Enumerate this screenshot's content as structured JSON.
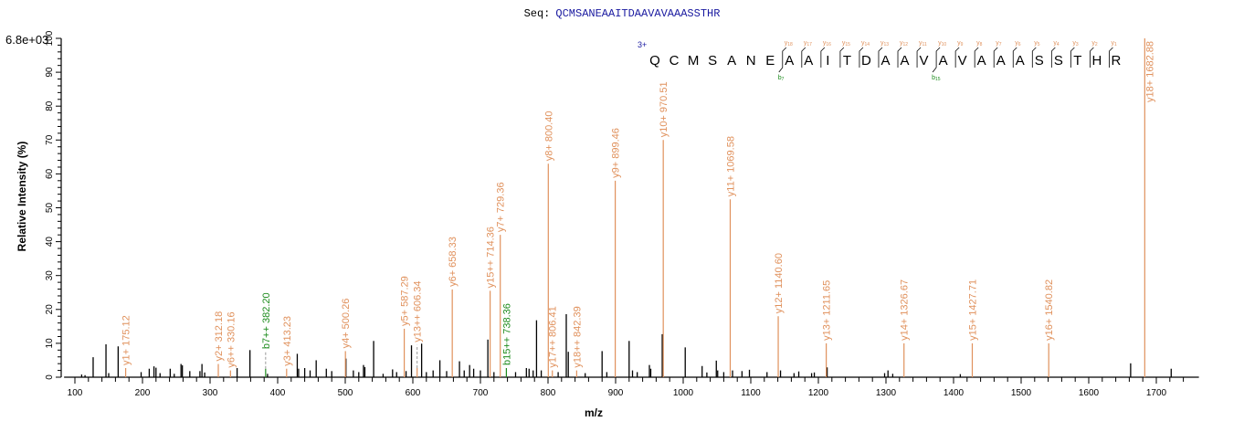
{
  "chart_data": {
    "type": "bar",
    "subtype": "mass-spectrum-sticks",
    "title_prefix": "Seq:",
    "title_sequence": "QCMSANEAAITDAAVAVAAASSTHR",
    "intensity_max_label": "6.8e+03",
    "xlabel": "m/z",
    "ylabel": "Relative Intensity (%)",
    "xlim": [
      84,
      1763
    ],
    "ylim": [
      0,
      100
    ],
    "x_ticks": [
      100,
      200,
      300,
      400,
      500,
      600,
      700,
      800,
      900,
      1000,
      1100,
      1200,
      1300,
      1400,
      1500,
      1600,
      1700
    ],
    "y_ticks": [
      0,
      10,
      20,
      30,
      40,
      50,
      60,
      70,
      80,
      90,
      100
    ],
    "grid": false,
    "colors": {
      "y_ion": "#e0915c",
      "b_ion": "#1e8c1e",
      "unassigned": "#000000",
      "sequence": "#1a1aa0",
      "charge": "#1a1aa0"
    },
    "annotated_peaks": [
      {
        "label": "y1+ 175.12",
        "mz": 175.12,
        "intensity": 2.7,
        "ion": "y"
      },
      {
        "label": "y2+ 312.18",
        "mz": 312.18,
        "intensity": 3.9,
        "ion": "y"
      },
      {
        "label": "y6++ 330.16",
        "mz": 330.16,
        "intensity": 2.0,
        "ion": "y"
      },
      {
        "label": "b7++ 382.20",
        "mz": 382.2,
        "intensity": 2.5,
        "ion": "b",
        "dashed": true,
        "label_at": 7.5
      },
      {
        "label": "y3+ 413.23",
        "mz": 413.23,
        "intensity": 2.5,
        "ion": "y"
      },
      {
        "label": "y4+ 500.26",
        "mz": 500.26,
        "intensity": 7.7,
        "ion": "y"
      },
      {
        "label": "y5+ 587.29",
        "mz": 587.29,
        "intensity": 14.3,
        "ion": "y"
      },
      {
        "label": "y13++ 606.34",
        "mz": 606.34,
        "intensity": 2.7,
        "ion": "y",
        "dashed": true,
        "label_at": 9.5
      },
      {
        "label": "y6+ 658.33",
        "mz": 658.33,
        "intensity": 25.9,
        "ion": "y"
      },
      {
        "label": "y15++ 714.36",
        "mz": 714.36,
        "intensity": 25.5,
        "ion": "y"
      },
      {
        "label": "y7+ 729.36",
        "mz": 729.36,
        "intensity": 42.0,
        "ion": "y"
      },
      {
        "label": "b15++ 738.36",
        "mz": 738.36,
        "intensity": 2.7,
        "ion": "b"
      },
      {
        "label": "y8+ 800.40",
        "mz": 800.4,
        "intensity": 63.0,
        "ion": "y"
      },
      {
        "label": "y17++ 806.41",
        "mz": 806.41,
        "intensity": 2.0,
        "ion": "y"
      },
      {
        "label": "y18++ 842.39",
        "mz": 842.39,
        "intensity": 2.0,
        "ion": "y"
      },
      {
        "label": "y9+ 899.46",
        "mz": 899.46,
        "intensity": 58.0,
        "ion": "y"
      },
      {
        "label": "y10+ 970.51",
        "mz": 970.51,
        "intensity": 70.0,
        "ion": "y"
      },
      {
        "label": "y11+ 1069.58",
        "mz": 1069.58,
        "intensity": 52.5,
        "ion": "y"
      },
      {
        "label": "y12+ 1140.60",
        "mz": 1140.6,
        "intensity": 18.0,
        "ion": "y"
      },
      {
        "label": "y13+ 1211.65",
        "mz": 1211.65,
        "intensity": 10.0,
        "ion": "y"
      },
      {
        "label": "y14+ 1326.67",
        "mz": 1326.67,
        "intensity": 10.0,
        "ion": "y"
      },
      {
        "label": "y15+ 1427.71",
        "mz": 1427.71,
        "intensity": 10.0,
        "ion": "y"
      },
      {
        "label": "y16+ 1540.82",
        "mz": 1540.82,
        "intensity": 10.0,
        "ion": "y"
      },
      {
        "label": "y18+ 1682.88",
        "mz": 1682.88,
        "intensity": 100.0,
        "ion": "y"
      }
    ],
    "unassigned_peaks": [
      [
        110,
        0.8
      ],
      [
        115,
        0.6
      ],
      [
        127,
        5.9
      ],
      [
        146,
        9.7
      ],
      [
        150,
        1.2
      ],
      [
        164,
        9.1
      ],
      [
        198,
        1.5
      ],
      [
        210,
        2.5
      ],
      [
        217,
        3.2
      ],
      [
        220,
        2.8
      ],
      [
        226,
        1.2
      ],
      [
        241,
        2.5
      ],
      [
        247,
        1.0
      ],
      [
        257,
        3.9
      ],
      [
        259,
        3.5
      ],
      [
        270,
        1.8
      ],
      [
        285,
        1.8
      ],
      [
        288,
        3.9
      ],
      [
        292,
        1.4
      ],
      [
        340,
        2.7
      ],
      [
        359,
        8.0
      ],
      [
        385,
        1.0
      ],
      [
        429,
        6.9
      ],
      [
        431,
        2.5
      ],
      [
        440,
        2.7
      ],
      [
        448,
        2.0
      ],
      [
        457,
        5.0
      ],
      [
        472,
        2.5
      ],
      [
        480,
        1.8
      ],
      [
        501,
        5.5
      ],
      [
        512,
        2.0
      ],
      [
        520,
        1.5
      ],
      [
        527,
        3.6
      ],
      [
        529,
        3.0
      ],
      [
        542,
        10.7
      ],
      [
        556,
        1.0
      ],
      [
        570,
        2.3
      ],
      [
        576,
        1.5
      ],
      [
        590,
        1.8
      ],
      [
        598,
        9.4
      ],
      [
        613,
        9.9
      ],
      [
        620,
        1.5
      ],
      [
        630,
        2.0
      ],
      [
        640,
        5.0
      ],
      [
        650,
        1.8
      ],
      [
        669,
        4.7
      ],
      [
        676,
        2.0
      ],
      [
        684,
        3.6
      ],
      [
        690,
        2.5
      ],
      [
        700,
        2.0
      ],
      [
        711,
        11.1
      ],
      [
        720,
        1.5
      ],
      [
        752,
        1.5
      ],
      [
        768,
        2.7
      ],
      [
        772,
        2.5
      ],
      [
        778,
        2.0
      ],
      [
        783,
        16.8
      ],
      [
        790,
        2.0
      ],
      [
        815,
        1.5
      ],
      [
        827,
        18.6
      ],
      [
        830,
        7.5
      ],
      [
        855,
        1.2
      ],
      [
        880,
        7.7
      ],
      [
        887,
        1.5
      ],
      [
        920,
        10.7
      ],
      [
        925,
        2.0
      ],
      [
        932,
        1.5
      ],
      [
        950,
        3.6
      ],
      [
        952,
        2.5
      ],
      [
        969,
        12.7
      ],
      [
        1003,
        8.8
      ],
      [
        1028,
        3.3
      ],
      [
        1035,
        1.4
      ],
      [
        1049,
        4.9
      ],
      [
        1051,
        2.0
      ],
      [
        1060,
        1.5
      ],
      [
        1073,
        2.0
      ],
      [
        1087,
        1.8
      ],
      [
        1098,
        2.2
      ],
      [
        1124,
        1.5
      ],
      [
        1144,
        2.0
      ],
      [
        1164,
        1.2
      ],
      [
        1171,
        1.7
      ],
      [
        1190,
        1.2
      ],
      [
        1194,
        1.4
      ],
      [
        1213,
        2.9
      ],
      [
        1298,
        1.2
      ],
      [
        1303,
        2.0
      ],
      [
        1310,
        1.0
      ],
      [
        1410,
        0.9
      ],
      [
        1662,
        4.1
      ],
      [
        1722,
        2.5
      ]
    ]
  },
  "sequence_annotation": {
    "charge": "3+",
    "letters": [
      "Q",
      "C",
      "M",
      "S",
      "A",
      "N",
      "E",
      "A",
      "A",
      "I",
      "T",
      "D",
      "A",
      "A",
      "V",
      "A",
      "V",
      "A",
      "A",
      "A",
      "S",
      "S",
      "T",
      "H",
      "R"
    ],
    "y_ions": [
      {
        "label": "y",
        "sub": "18",
        "after": 7
      },
      {
        "label": "y",
        "sub": "17",
        "after": 8
      },
      {
        "label": "y",
        "sub": "16",
        "after": 9
      },
      {
        "label": "y",
        "sub": "15",
        "after": 10
      },
      {
        "label": "y",
        "sub": "14",
        "after": 11
      },
      {
        "label": "y",
        "sub": "13",
        "after": 12
      },
      {
        "label": "y",
        "sub": "12",
        "after": 13
      },
      {
        "label": "y",
        "sub": "11",
        "after": 14
      },
      {
        "label": "y",
        "sub": "10",
        "after": 15
      },
      {
        "label": "y",
        "sub": "9",
        "after": 16
      },
      {
        "label": "y",
        "sub": "8",
        "after": 17
      },
      {
        "label": "y",
        "sub": "7",
        "after": 18
      },
      {
        "label": "y",
        "sub": "6",
        "after": 19
      },
      {
        "label": "y",
        "sub": "5",
        "after": 20
      },
      {
        "label": "y",
        "sub": "4",
        "after": 21
      },
      {
        "label": "y",
        "sub": "3",
        "after": 22
      },
      {
        "label": "y",
        "sub": "2",
        "after": 23
      },
      {
        "label": "y",
        "sub": "1",
        "after": 24
      }
    ],
    "b_ions": [
      {
        "label": "b",
        "sub": "7",
        "after": 7
      },
      {
        "label": "b",
        "sub": "15",
        "after": 15
      }
    ]
  }
}
